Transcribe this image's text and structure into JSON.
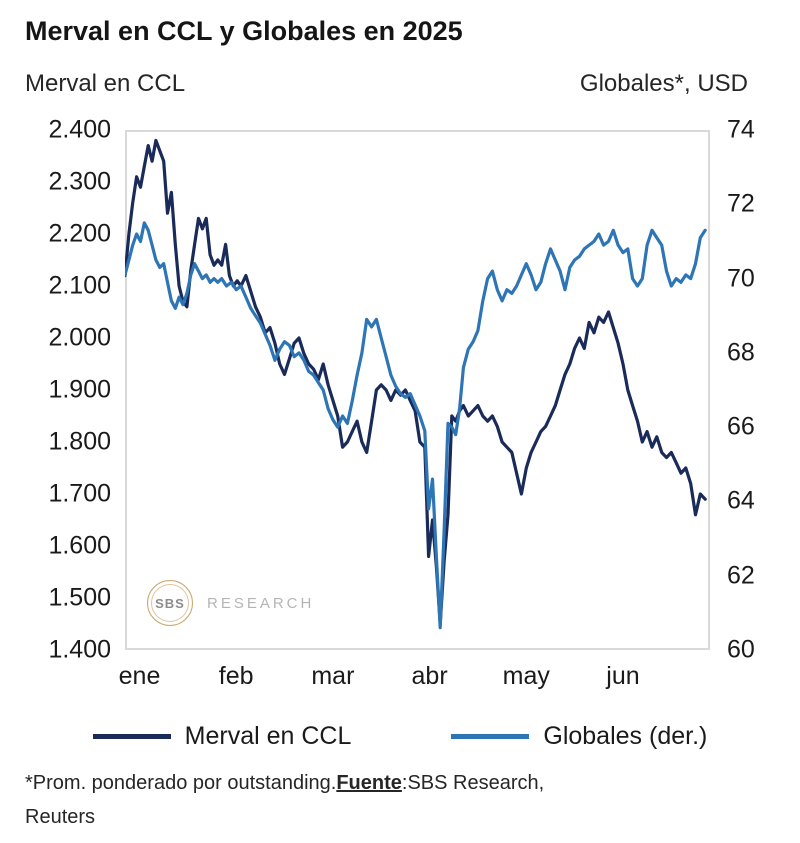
{
  "title": "Merval en CCL y Globales en 2025",
  "left_axis_title": "Merval en CCL",
  "right_axis_title": "Globales*, USD",
  "watermark": {
    "circle_text": "SBS",
    "label": "RESEARCH"
  },
  "legend": [
    {
      "label": "Merval en CCL",
      "color": "#1a2b5a"
    },
    {
      "label": "Globales (der.)",
      "color": "#2e75b6"
    }
  ],
  "footnote": {
    "prefix": "*Prom. ponderado por outstanding.",
    "fuente_label": "Fuente",
    "suffix": ":SBS Research,",
    "line2": "Reuters"
  },
  "chart_data": {
    "type": "line",
    "title": "Merval en CCL y Globales en 2025",
    "x_unit": "months since start of January 2025",
    "xlim": [
      0,
      6.05
    ],
    "x_tick_labels": [
      "ene",
      "feb",
      "mar",
      "abr",
      "may",
      "jun"
    ],
    "x_tick_positions": [
      0.15,
      1.15,
      2.15,
      3.15,
      4.15,
      5.15
    ],
    "grid": false,
    "legend_position": "bottom",
    "left_axis": {
      "label": "Merval en CCL",
      "ylim": [
        1400,
        2400
      ],
      "tick_values": [
        2400,
        2300,
        2200,
        2100,
        2000,
        1900,
        1800,
        1700,
        1600,
        1500,
        1400
      ],
      "tick_labels": [
        "2.400",
        "2.300",
        "2.200",
        "2.100",
        "2.000",
        "1.900",
        "1.800",
        "1.700",
        "1.600",
        "1.500",
        "1.400"
      ]
    },
    "right_axis": {
      "label": "Globales*, USD",
      "ylim": [
        60,
        74
      ],
      "tick_values": [
        74,
        72,
        70,
        68,
        66,
        64,
        62,
        60
      ],
      "tick_labels": [
        "74",
        "72",
        "70",
        "68",
        "66",
        "64",
        "62",
        "60"
      ]
    },
    "series": [
      {
        "name": "Merval en CCL",
        "axis": "left",
        "color": "#1a2b5a",
        "points": [
          [
            0.0,
            2120
          ],
          [
            0.04,
            2200
          ],
          [
            0.08,
            2260
          ],
          [
            0.12,
            2310
          ],
          [
            0.16,
            2290
          ],
          [
            0.2,
            2330
          ],
          [
            0.24,
            2370
          ],
          [
            0.28,
            2340
          ],
          [
            0.32,
            2380
          ],
          [
            0.36,
            2360
          ],
          [
            0.4,
            2340
          ],
          [
            0.44,
            2240
          ],
          [
            0.48,
            2280
          ],
          [
            0.52,
            2180
          ],
          [
            0.56,
            2100
          ],
          [
            0.6,
            2070
          ],
          [
            0.64,
            2060
          ],
          [
            0.68,
            2130
          ],
          [
            0.72,
            2180
          ],
          [
            0.76,
            2230
          ],
          [
            0.8,
            2210
          ],
          [
            0.84,
            2230
          ],
          [
            0.88,
            2160
          ],
          [
            0.92,
            2140
          ],
          [
            0.96,
            2150
          ],
          [
            1.0,
            2140
          ],
          [
            1.04,
            2180
          ],
          [
            1.08,
            2120
          ],
          [
            1.12,
            2100
          ],
          [
            1.16,
            2110
          ],
          [
            1.2,
            2100
          ],
          [
            1.25,
            2120
          ],
          [
            1.3,
            2090
          ],
          [
            1.35,
            2060
          ],
          [
            1.4,
            2040
          ],
          [
            1.45,
            2010
          ],
          [
            1.5,
            2020
          ],
          [
            1.55,
            1990
          ],
          [
            1.6,
            1950
          ],
          [
            1.65,
            1930
          ],
          [
            1.7,
            1960
          ],
          [
            1.75,
            1990
          ],
          [
            1.8,
            2000
          ],
          [
            1.85,
            1970
          ],
          [
            1.9,
            1950
          ],
          [
            1.95,
            1940
          ],
          [
            2.0,
            1920
          ],
          [
            2.05,
            1950
          ],
          [
            2.1,
            1910
          ],
          [
            2.15,
            1880
          ],
          [
            2.2,
            1850
          ],
          [
            2.25,
            1790
          ],
          [
            2.3,
            1800
          ],
          [
            2.35,
            1820
          ],
          [
            2.4,
            1840
          ],
          [
            2.45,
            1800
          ],
          [
            2.5,
            1780
          ],
          [
            2.55,
            1840
          ],
          [
            2.6,
            1900
          ],
          [
            2.65,
            1910
          ],
          [
            2.7,
            1900
          ],
          [
            2.75,
            1880
          ],
          [
            2.8,
            1900
          ],
          [
            2.85,
            1890
          ],
          [
            2.9,
            1900
          ],
          [
            2.95,
            1880
          ],
          [
            3.0,
            1860
          ],
          [
            3.05,
            1800
          ],
          [
            3.1,
            1790
          ],
          [
            3.14,
            1580
          ],
          [
            3.18,
            1650
          ],
          [
            3.22,
            1560
          ],
          [
            3.26,
            1450
          ],
          [
            3.3,
            1570
          ],
          [
            3.34,
            1660
          ],
          [
            3.38,
            1850
          ],
          [
            3.42,
            1840
          ],
          [
            3.46,
            1860
          ],
          [
            3.5,
            1870
          ],
          [
            3.55,
            1850
          ],
          [
            3.6,
            1860
          ],
          [
            3.65,
            1870
          ],
          [
            3.7,
            1850
          ],
          [
            3.75,
            1840
          ],
          [
            3.8,
            1850
          ],
          [
            3.85,
            1830
          ],
          [
            3.9,
            1800
          ],
          [
            3.95,
            1790
          ],
          [
            4.0,
            1780
          ],
          [
            4.05,
            1740
          ],
          [
            4.1,
            1700
          ],
          [
            4.15,
            1750
          ],
          [
            4.2,
            1780
          ],
          [
            4.25,
            1800
          ],
          [
            4.3,
            1820
          ],
          [
            4.35,
            1830
          ],
          [
            4.4,
            1850
          ],
          [
            4.45,
            1870
          ],
          [
            4.5,
            1900
          ],
          [
            4.55,
            1930
          ],
          [
            4.6,
            1950
          ],
          [
            4.65,
            1980
          ],
          [
            4.7,
            2000
          ],
          [
            4.75,
            1980
          ],
          [
            4.8,
            2030
          ],
          [
            4.85,
            2010
          ],
          [
            4.9,
            2040
          ],
          [
            4.95,
            2030
          ],
          [
            5.0,
            2050
          ],
          [
            5.05,
            2020
          ],
          [
            5.1,
            1990
          ],
          [
            5.15,
            1950
          ],
          [
            5.2,
            1900
          ],
          [
            5.25,
            1870
          ],
          [
            5.3,
            1840
          ],
          [
            5.35,
            1800
          ],
          [
            5.4,
            1820
          ],
          [
            5.45,
            1790
          ],
          [
            5.5,
            1810
          ],
          [
            5.55,
            1780
          ],
          [
            5.6,
            1770
          ],
          [
            5.65,
            1780
          ],
          [
            5.7,
            1760
          ],
          [
            5.75,
            1740
          ],
          [
            5.8,
            1750
          ],
          [
            5.85,
            1720
          ],
          [
            5.9,
            1660
          ],
          [
            5.95,
            1700
          ],
          [
            6.0,
            1690
          ]
        ]
      },
      {
        "name": "Globales (der.)",
        "axis": "right",
        "color": "#2e75b6",
        "points": [
          [
            0.0,
            70.1
          ],
          [
            0.04,
            70.5
          ],
          [
            0.08,
            70.9
          ],
          [
            0.12,
            71.2
          ],
          [
            0.16,
            71.0
          ],
          [
            0.2,
            71.5
          ],
          [
            0.24,
            71.3
          ],
          [
            0.28,
            70.9
          ],
          [
            0.32,
            70.5
          ],
          [
            0.36,
            70.3
          ],
          [
            0.4,
            70.4
          ],
          [
            0.44,
            69.9
          ],
          [
            0.48,
            69.4
          ],
          [
            0.52,
            69.2
          ],
          [
            0.56,
            69.5
          ],
          [
            0.6,
            69.3
          ],
          [
            0.64,
            69.6
          ],
          [
            0.68,
            70.1
          ],
          [
            0.72,
            70.4
          ],
          [
            0.76,
            70.2
          ],
          [
            0.8,
            70.0
          ],
          [
            0.84,
            70.1
          ],
          [
            0.88,
            69.9
          ],
          [
            0.92,
            70.0
          ],
          [
            0.96,
            69.9
          ],
          [
            1.0,
            70.0
          ],
          [
            1.05,
            69.8
          ],
          [
            1.1,
            69.9
          ],
          [
            1.15,
            69.7
          ],
          [
            1.2,
            69.8
          ],
          [
            1.25,
            69.5
          ],
          [
            1.3,
            69.2
          ],
          [
            1.35,
            69.0
          ],
          [
            1.4,
            68.8
          ],
          [
            1.45,
            68.5
          ],
          [
            1.5,
            68.2
          ],
          [
            1.55,
            67.8
          ],
          [
            1.6,
            68.1
          ],
          [
            1.65,
            68.3
          ],
          [
            1.7,
            68.2
          ],
          [
            1.75,
            67.9
          ],
          [
            1.8,
            68.0
          ],
          [
            1.85,
            67.8
          ],
          [
            1.9,
            67.5
          ],
          [
            1.95,
            67.4
          ],
          [
            2.0,
            67.2
          ],
          [
            2.05,
            67.0
          ],
          [
            2.1,
            66.5
          ],
          [
            2.15,
            66.2
          ],
          [
            2.2,
            66.0
          ],
          [
            2.25,
            66.3
          ],
          [
            2.3,
            66.1
          ],
          [
            2.35,
            66.7
          ],
          [
            2.4,
            67.4
          ],
          [
            2.45,
            68.0
          ],
          [
            2.5,
            68.9
          ],
          [
            2.55,
            68.7
          ],
          [
            2.6,
            68.9
          ],
          [
            2.65,
            68.4
          ],
          [
            2.7,
            67.9
          ],
          [
            2.75,
            67.4
          ],
          [
            2.8,
            67.1
          ],
          [
            2.85,
            66.9
          ],
          [
            2.9,
            66.8
          ],
          [
            2.95,
            66.9
          ],
          [
            3.0,
            66.6
          ],
          [
            3.05,
            66.3
          ],
          [
            3.1,
            65.9
          ],
          [
            3.14,
            63.8
          ],
          [
            3.18,
            64.6
          ],
          [
            3.22,
            62.5
          ],
          [
            3.26,
            60.6
          ],
          [
            3.3,
            63.2
          ],
          [
            3.34,
            66.1
          ],
          [
            3.38,
            66.0
          ],
          [
            3.42,
            65.8
          ],
          [
            3.46,
            66.5
          ],
          [
            3.5,
            67.6
          ],
          [
            3.55,
            68.1
          ],
          [
            3.6,
            68.3
          ],
          [
            3.65,
            68.6
          ],
          [
            3.7,
            69.4
          ],
          [
            3.75,
            70.0
          ],
          [
            3.8,
            70.2
          ],
          [
            3.85,
            69.7
          ],
          [
            3.9,
            69.4
          ],
          [
            3.95,
            69.7
          ],
          [
            4.0,
            69.6
          ],
          [
            4.05,
            69.8
          ],
          [
            4.1,
            70.1
          ],
          [
            4.15,
            70.4
          ],
          [
            4.2,
            70.1
          ],
          [
            4.25,
            69.7
          ],
          [
            4.3,
            69.9
          ],
          [
            4.35,
            70.4
          ],
          [
            4.4,
            70.8
          ],
          [
            4.45,
            70.5
          ],
          [
            4.5,
            70.2
          ],
          [
            4.55,
            69.7
          ],
          [
            4.6,
            70.3
          ],
          [
            4.65,
            70.5
          ],
          [
            4.7,
            70.6
          ],
          [
            4.75,
            70.8
          ],
          [
            4.8,
            70.9
          ],
          [
            4.85,
            71.0
          ],
          [
            4.9,
            71.2
          ],
          [
            4.95,
            70.9
          ],
          [
            5.0,
            71.0
          ],
          [
            5.05,
            71.3
          ],
          [
            5.1,
            70.9
          ],
          [
            5.15,
            70.7
          ],
          [
            5.2,
            70.8
          ],
          [
            5.25,
            70.0
          ],
          [
            5.3,
            69.8
          ],
          [
            5.35,
            70.0
          ],
          [
            5.4,
            70.9
          ],
          [
            5.45,
            71.3
          ],
          [
            5.5,
            71.1
          ],
          [
            5.55,
            70.9
          ],
          [
            5.6,
            70.2
          ],
          [
            5.65,
            69.8
          ],
          [
            5.7,
            70.0
          ],
          [
            5.75,
            69.9
          ],
          [
            5.8,
            70.1
          ],
          [
            5.85,
            70.0
          ],
          [
            5.9,
            70.4
          ],
          [
            5.95,
            71.1
          ],
          [
            6.0,
            71.3
          ]
        ]
      }
    ]
  }
}
